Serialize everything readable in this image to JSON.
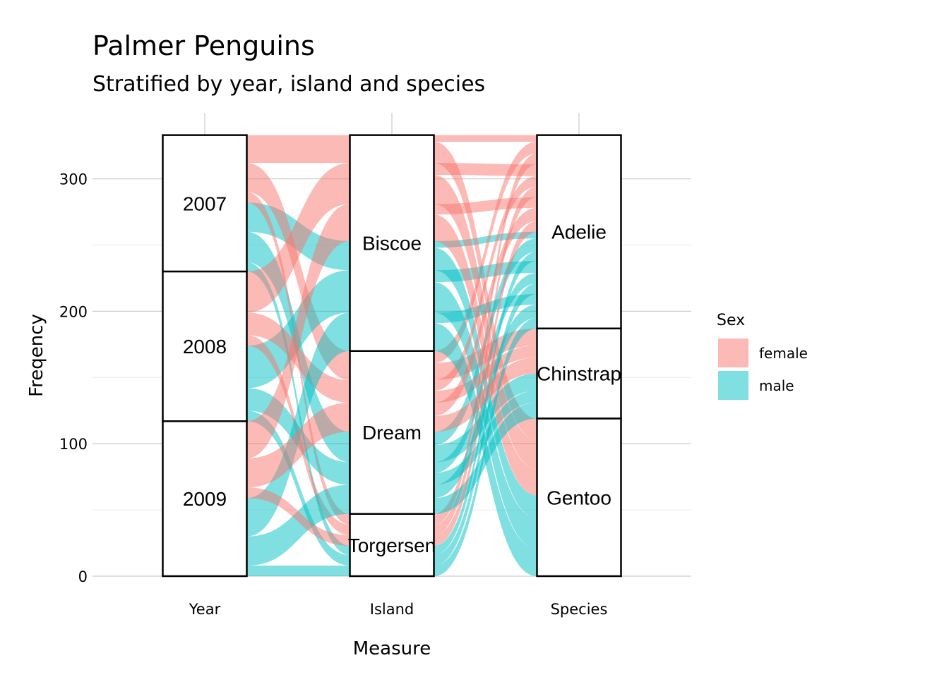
{
  "chart_data": {
    "type": "alluvial",
    "title": "Palmer Penguins",
    "subtitle": "Stratified by year, island and species",
    "xlabel": "Measure",
    "ylabel": "Freqency",
    "ylim": [
      0,
      333
    ],
    "y_ticks": [
      0,
      100,
      200,
      300
    ],
    "axes": [
      "Year",
      "Island",
      "Species"
    ],
    "strata": {
      "Year": [
        {
          "label": "2007",
          "count": 103
        },
        {
          "label": "2008",
          "count": 113
        },
        {
          "label": "2009",
          "count": 117
        }
      ],
      "Island": [
        {
          "label": "Biscoe",
          "count": 163
        },
        {
          "label": "Dream",
          "count": 123
        },
        {
          "label": "Torgersen",
          "count": 47
        }
      ],
      "Species": [
        {
          "label": "Adelie",
          "count": 146
        },
        {
          "label": "Chinstrap",
          "count": 68
        },
        {
          "label": "Gentoo",
          "count": 119
        }
      ]
    },
    "legend": {
      "title": "Sex",
      "position": "right",
      "items": [
        {
          "label": "female",
          "color": "#F8766D"
        },
        {
          "label": "male",
          "color": "#00BFC4"
        }
      ]
    },
    "flow_opacity": 0.5,
    "groups": [
      {
        "year": "2007",
        "island": "Biscoe",
        "species": "Adelie",
        "sex": "female",
        "n": 5
      },
      {
        "year": "2007",
        "island": "Biscoe",
        "species": "Adelie",
        "sex": "male",
        "n": 5
      },
      {
        "year": "2007",
        "island": "Biscoe",
        "species": "Gentoo",
        "sex": "female",
        "n": 16
      },
      {
        "year": "2007",
        "island": "Biscoe",
        "species": "Gentoo",
        "sex": "male",
        "n": 17
      },
      {
        "year": "2007",
        "island": "Dream",
        "species": "Adelie",
        "sex": "female",
        "n": 9
      },
      {
        "year": "2007",
        "island": "Dream",
        "species": "Adelie",
        "sex": "male",
        "n": 10
      },
      {
        "year": "2007",
        "island": "Dream",
        "species": "Chinstrap",
        "sex": "female",
        "n": 13
      },
      {
        "year": "2007",
        "island": "Dream",
        "species": "Chinstrap",
        "sex": "male",
        "n": 13
      },
      {
        "year": "2007",
        "island": "Torgersen",
        "species": "Adelie",
        "sex": "female",
        "n": 8
      },
      {
        "year": "2007",
        "island": "Torgersen",
        "species": "Adelie",
        "sex": "male",
        "n": 7
      },
      {
        "year": "2008",
        "island": "Biscoe",
        "species": "Adelie",
        "sex": "female",
        "n": 9
      },
      {
        "year": "2008",
        "island": "Biscoe",
        "species": "Adelie",
        "sex": "male",
        "n": 9
      },
      {
        "year": "2008",
        "island": "Biscoe",
        "species": "Gentoo",
        "sex": "female",
        "n": 22
      },
      {
        "year": "2008",
        "island": "Biscoe",
        "species": "Gentoo",
        "sex": "male",
        "n": 23
      },
      {
        "year": "2008",
        "island": "Dream",
        "species": "Adelie",
        "sex": "female",
        "n": 8
      },
      {
        "year": "2008",
        "island": "Dream",
        "species": "Adelie",
        "sex": "male",
        "n": 8
      },
      {
        "year": "2008",
        "island": "Dream",
        "species": "Chinstrap",
        "sex": "female",
        "n": 9
      },
      {
        "year": "2008",
        "island": "Dream",
        "species": "Chinstrap",
        "sex": "male",
        "n": 9
      },
      {
        "year": "2008",
        "island": "Torgersen",
        "species": "Adelie",
        "sex": "female",
        "n": 8
      },
      {
        "year": "2008",
        "island": "Torgersen",
        "species": "Adelie",
        "sex": "male",
        "n": 8
      },
      {
        "year": "2009",
        "island": "Biscoe",
        "species": "Adelie",
        "sex": "female",
        "n": 8
      },
      {
        "year": "2009",
        "island": "Biscoe",
        "species": "Adelie",
        "sex": "male",
        "n": 8
      },
      {
        "year": "2009",
        "island": "Biscoe",
        "species": "Gentoo",
        "sex": "female",
        "n": 20
      },
      {
        "year": "2009",
        "island": "Biscoe",
        "species": "Gentoo",
        "sex": "male",
        "n": 21
      },
      {
        "year": "2009",
        "island": "Dream",
        "species": "Adelie",
        "sex": "female",
        "n": 10
      },
      {
        "year": "2009",
        "island": "Dream",
        "species": "Adelie",
        "sex": "male",
        "n": 10
      },
      {
        "year": "2009",
        "island": "Dream",
        "species": "Chinstrap",
        "sex": "female",
        "n": 12
      },
      {
        "year": "2009",
        "island": "Dream",
        "species": "Chinstrap",
        "sex": "male",
        "n": 12
      },
      {
        "year": "2009",
        "island": "Torgersen",
        "species": "Adelie",
        "sex": "female",
        "n": 8
      },
      {
        "year": "2009",
        "island": "Torgersen",
        "species": "Adelie",
        "sex": "male",
        "n": 8
      }
    ]
  }
}
